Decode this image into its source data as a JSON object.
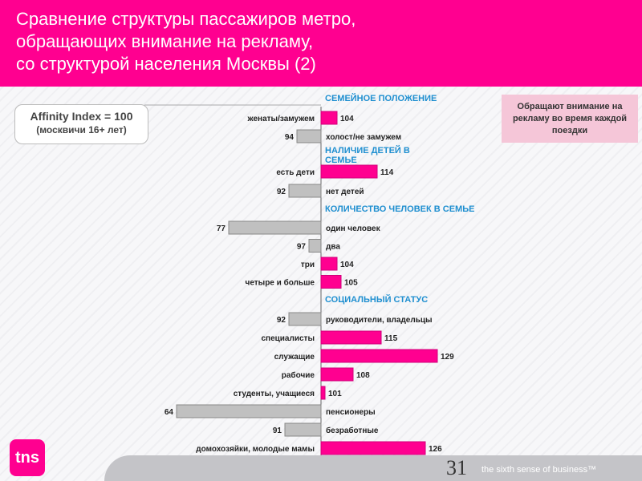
{
  "title": [
    "Сравнение структуры пассажиров метро,",
    "обращающих внимание на рекламу,",
    "со структурой населения Москвы (2)"
  ],
  "affinity": {
    "line1": "Affinity Index = 100",
    "line2": "(москвичи 16+ лет)"
  },
  "note": "Обращают внимание на рекламу во время каждой поездки",
  "logo": "tns",
  "slogan": "the sixth sense of business™",
  "page_number": "31",
  "colors": {
    "above": "#ff0090",
    "below": "#c0c0c0",
    "header": "#ff0090",
    "section": "#1f8fd0"
  },
  "chart_data": {
    "type": "bar",
    "orientation": "horizontal",
    "baseline": 100,
    "sections": [
      {
        "title": "СЕМЕЙНОЕ ПОЛОЖЕНИЕ",
        "items": [
          {
            "label": "женаты/замужем",
            "value": 104
          },
          {
            "label": "холост/не замужем",
            "value": 94
          }
        ]
      },
      {
        "title": "НАЛИЧИЕ ДЕТЕЙ В СЕМЬЕ",
        "items": [
          {
            "label": "есть дети",
            "value": 114
          },
          {
            "label": "нет детей",
            "value": 92
          }
        ]
      },
      {
        "title": "КОЛИЧЕСТВО ЧЕЛОВЕК В СЕМЬЕ",
        "items": [
          {
            "label": "один человек",
            "value": 77
          },
          {
            "label": "два",
            "value": 97
          },
          {
            "label": "три",
            "value": 104
          },
          {
            "label": "четыре и больше",
            "value": 105
          }
        ]
      },
      {
        "title": "СОЦИАЛЬНЫЙ СТАТУС",
        "items": [
          {
            "label": "руководители, владельцы",
            "value": 92
          },
          {
            "label": "специалисты",
            "value": 115
          },
          {
            "label": "служащие",
            "value": 129
          },
          {
            "label": "рабочие",
            "value": 108
          },
          {
            "label": "студенты, учащиеся",
            "value": 101
          },
          {
            "label": "пенсионеры",
            "value": 64
          },
          {
            "label": "безработные",
            "value": 91
          },
          {
            "label": "домохозяйки, молодые мамы",
            "value": 126
          }
        ]
      }
    ]
  }
}
